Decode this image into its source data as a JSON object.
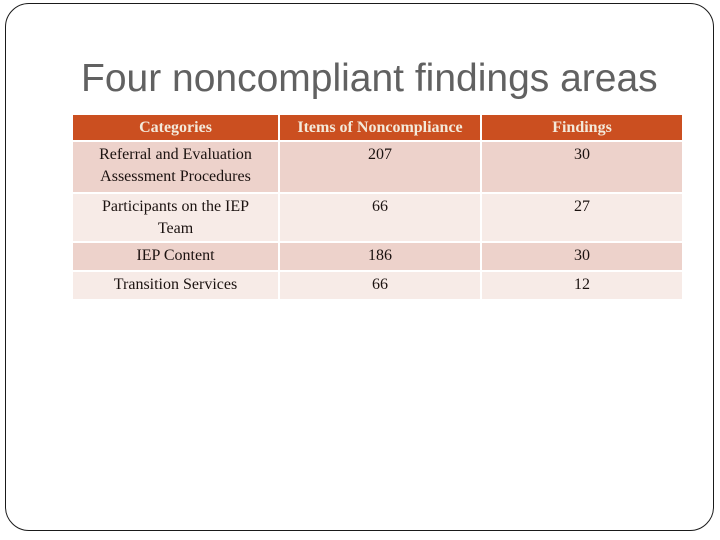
{
  "slide": {
    "title": "Four noncompliant findings areas"
  },
  "table": {
    "headers": [
      "Categories",
      "Items of Noncompliance",
      "Findings"
    ],
    "rows": [
      {
        "category": "Referral and Evaluation Assessment Procedures",
        "items_of_noncompliance": "207",
        "findings": "30"
      },
      {
        "category": "Participants on the IEP Team",
        "items_of_noncompliance": "66",
        "findings": "27"
      },
      {
        "category": "IEP Content",
        "items_of_noncompliance": "186",
        "findings": "30"
      },
      {
        "category": "Transition Services",
        "items_of_noncompliance": "66",
        "findings": "12"
      }
    ]
  },
  "colors": {
    "header_background": "#cb4f20",
    "header_text": "#f3e9da",
    "row_band_dark": "#edd2cb",
    "row_band_light": "#f7ebe7",
    "cell_text": "#1b1210",
    "title_text": "#616161",
    "slide_border": "#1a1a1a"
  }
}
